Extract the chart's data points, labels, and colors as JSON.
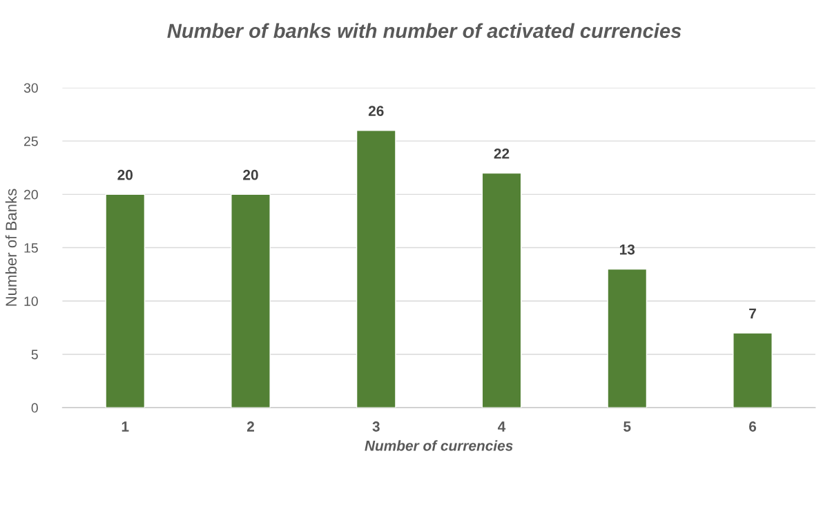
{
  "chart_data": {
    "type": "bar",
    "title": "Number of banks with number of activated currencies",
    "xlabel": "Number of currencies",
    "ylabel": "Number of Banks",
    "categories": [
      "1",
      "2",
      "3",
      "4",
      "5",
      "6"
    ],
    "values": [
      20,
      20,
      26,
      22,
      13,
      7
    ],
    "color": "#538135",
    "ylim": [
      0,
      30
    ],
    "yticks": [
      0,
      5,
      10,
      15,
      20,
      25,
      30
    ],
    "grid": "y",
    "data_labels": true,
    "legend": false
  }
}
